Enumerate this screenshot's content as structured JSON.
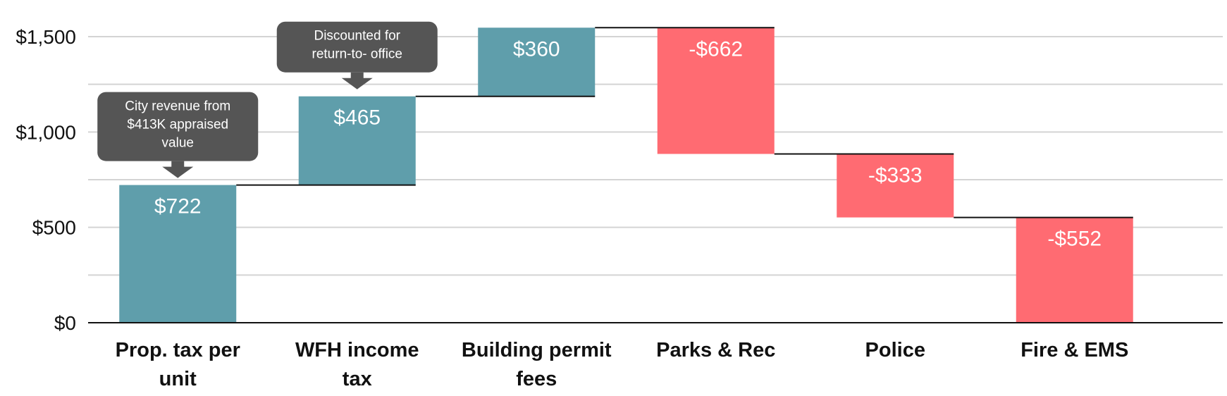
{
  "chart_data": {
    "type": "waterfall",
    "title": "",
    "xlabel": "",
    "ylabel": "",
    "ylim": [
      0,
      1500
    ],
    "y_ticks": [
      0,
      500,
      1000,
      1500
    ],
    "y_tick_labels": [
      "$0",
      "$500",
      "$1,000",
      "$1,500"
    ],
    "grid": true,
    "categories": [
      [
        "Prop. tax per",
        "unit"
      ],
      [
        "WFH income",
        "tax"
      ],
      [
        "Building permit",
        "fees"
      ],
      [
        "Parks & Rec"
      ],
      [
        "Police"
      ],
      [
        "Fire & EMS"
      ]
    ],
    "values": [
      722,
      465,
      360,
      -662,
      -333,
      -552
    ],
    "value_labels": [
      "$722",
      "$465",
      "$360",
      "-$662",
      "-$333",
      "-$552"
    ],
    "annotations": [
      {
        "bar_index": 0,
        "lines": [
          "City revenue from",
          "$413K appraised",
          "value"
        ]
      },
      {
        "bar_index": 1,
        "lines": [
          "Discounted for",
          "return-to- office"
        ]
      }
    ]
  },
  "colors": {
    "positive": "#5f9eab",
    "negative": "#ff6b72",
    "callout": "#555555",
    "grid": "#d4d4d4",
    "axis": "#111111",
    "connector": "#111111"
  }
}
